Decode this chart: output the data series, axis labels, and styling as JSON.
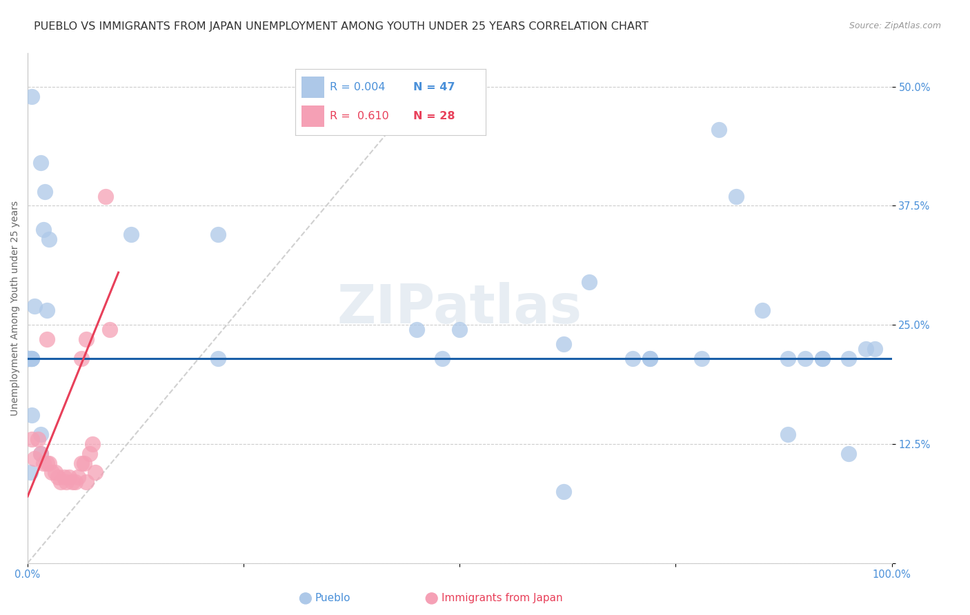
{
  "title": "PUEBLO VS IMMIGRANTS FROM JAPAN UNEMPLOYMENT AMONG YOUTH UNDER 25 YEARS CORRELATION CHART",
  "source": "Source: ZipAtlas.com",
  "ylabel": "Unemployment Among Youth under 25 years",
  "yticks": [
    0.0,
    0.125,
    0.25,
    0.375,
    0.5
  ],
  "ytick_labels": [
    "",
    "12.5%",
    "25.0%",
    "37.5%",
    "50.0%"
  ],
  "xlim": [
    0.0,
    1.0
  ],
  "ylim": [
    0.0,
    0.535
  ],
  "legend_r1": "R = 0.004",
  "legend_n1": "N = 47",
  "legend_r2": "R =  0.610",
  "legend_n2": "N = 28",
  "blue_scatter_x": [
    0.005,
    0.015,
    0.02,
    0.018,
    0.025,
    0.022,
    0.008,
    0.005,
    0.005,
    0.003,
    0.003,
    0.002,
    0.001,
    0.001,
    0.001,
    0.0,
    0.0,
    0.005,
    0.12,
    0.22,
    0.22,
    0.45,
    0.5,
    0.62,
    0.65,
    0.7,
    0.72,
    0.78,
    0.8,
    0.82,
    0.85,
    0.88,
    0.9,
    0.92,
    0.95,
    0.95,
    0.97,
    0.72,
    0.62,
    0.88,
    0.92,
    0.98,
    0.005,
    0.015,
    0.48,
    0.015,
    0.003
  ],
  "blue_scatter_y": [
    0.49,
    0.42,
    0.39,
    0.35,
    0.34,
    0.265,
    0.27,
    0.215,
    0.215,
    0.215,
    0.215,
    0.215,
    0.215,
    0.215,
    0.215,
    0.215,
    0.215,
    0.215,
    0.345,
    0.345,
    0.215,
    0.245,
    0.245,
    0.23,
    0.295,
    0.215,
    0.215,
    0.215,
    0.455,
    0.385,
    0.265,
    0.215,
    0.215,
    0.215,
    0.115,
    0.215,
    0.225,
    0.215,
    0.075,
    0.135,
    0.215,
    0.225,
    0.155,
    0.135,
    0.215,
    0.115,
    0.095
  ],
  "blue_line_y": 0.215,
  "pink_scatter_x": [
    0.005,
    0.008,
    0.012,
    0.015,
    0.018,
    0.022,
    0.025,
    0.028,
    0.032,
    0.035,
    0.038,
    0.042,
    0.045,
    0.048,
    0.052,
    0.055,
    0.058,
    0.062,
    0.065,
    0.068,
    0.072,
    0.075,
    0.078,
    0.022,
    0.062,
    0.068,
    0.09,
    0.095
  ],
  "pink_scatter_y": [
    0.13,
    0.11,
    0.13,
    0.115,
    0.105,
    0.105,
    0.105,
    0.095,
    0.095,
    0.09,
    0.085,
    0.09,
    0.085,
    0.09,
    0.085,
    0.085,
    0.09,
    0.105,
    0.105,
    0.085,
    0.115,
    0.125,
    0.095,
    0.235,
    0.215,
    0.235,
    0.385,
    0.245
  ],
  "pink_line_x0": 0.0,
  "pink_line_y0": 0.07,
  "pink_line_x1": 0.105,
  "pink_line_y1": 0.305,
  "diag_line_x0": 0.0,
  "diag_line_y0": 0.0,
  "diag_line_x1": 0.47,
  "diag_line_y1": 0.51,
  "blue_color": "#adc8e8",
  "pink_color": "#f5a0b5",
  "blue_line_color": "#1a5fa8",
  "pink_line_color": "#e8405a",
  "diag_line_color": "#d0d0d0",
  "background_color": "#ffffff",
  "title_fontsize": 11.5,
  "axis_label_fontsize": 10,
  "tick_fontsize": 10.5,
  "legend_fontsize": 12,
  "watermark_text": "ZIPatlas",
  "watermark_color": "#d0dce8",
  "legend_blue_color": "#4a90d9",
  "legend_pink_color": "#e8405a",
  "bottom_label_pueblo": "Pueblo",
  "bottom_label_japan": "Immigrants from Japan"
}
